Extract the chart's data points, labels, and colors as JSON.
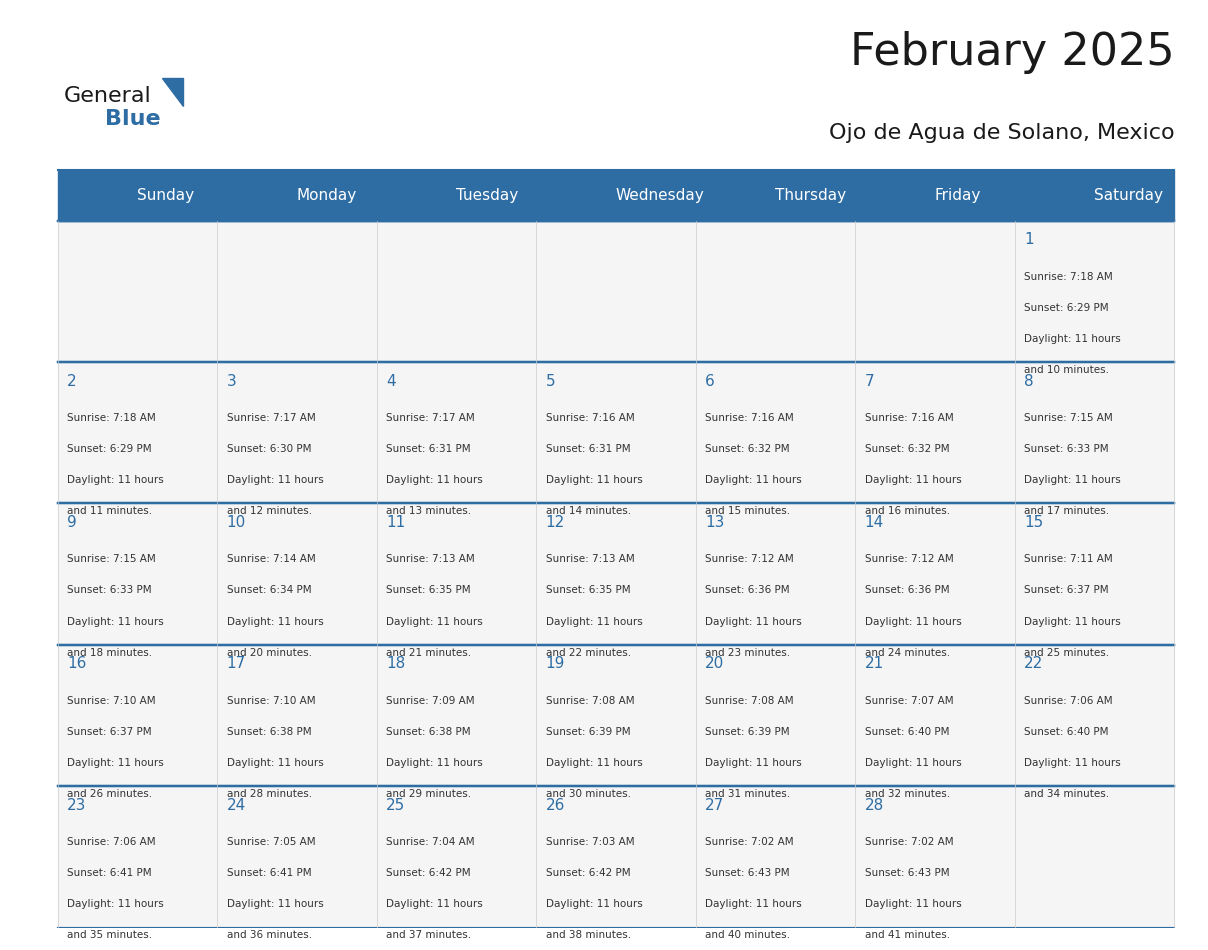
{
  "title": "February 2025",
  "subtitle": "Ojo de Agua de Solano, Mexico",
  "header_bg_color": "#2E6DA4",
  "header_text_color": "#FFFFFF",
  "cell_bg_color": "#F2F2F2",
  "cell_alt_bg_color": "#FFFFFF",
  "day_headers": [
    "Sunday",
    "Monday",
    "Tuesday",
    "Wednesday",
    "Thursday",
    "Friday",
    "Saturday"
  ],
  "title_color": "#1a1a1a",
  "subtitle_color": "#1a1a1a",
  "day_number_color": "#2E6DA4",
  "cell_text_color": "#333333",
  "grid_line_color": "#2E6DA4",
  "calendar_data": [
    [
      null,
      null,
      null,
      null,
      null,
      null,
      {
        "day": 1,
        "sunrise": "7:18 AM",
        "sunset": "6:29 PM",
        "daylight": "11 hours and 10 minutes."
      }
    ],
    [
      {
        "day": 2,
        "sunrise": "7:18 AM",
        "sunset": "6:29 PM",
        "daylight": "11 hours and 11 minutes."
      },
      {
        "day": 3,
        "sunrise": "7:17 AM",
        "sunset": "6:30 PM",
        "daylight": "11 hours and 12 minutes."
      },
      {
        "day": 4,
        "sunrise": "7:17 AM",
        "sunset": "6:31 PM",
        "daylight": "11 hours and 13 minutes."
      },
      {
        "day": 5,
        "sunrise": "7:16 AM",
        "sunset": "6:31 PM",
        "daylight": "11 hours and 14 minutes."
      },
      {
        "day": 6,
        "sunrise": "7:16 AM",
        "sunset": "6:32 PM",
        "daylight": "11 hours and 15 minutes."
      },
      {
        "day": 7,
        "sunrise": "7:16 AM",
        "sunset": "6:32 PM",
        "daylight": "11 hours and 16 minutes."
      },
      {
        "day": 8,
        "sunrise": "7:15 AM",
        "sunset": "6:33 PM",
        "daylight": "11 hours and 17 minutes."
      }
    ],
    [
      {
        "day": 9,
        "sunrise": "7:15 AM",
        "sunset": "6:33 PM",
        "daylight": "11 hours and 18 minutes."
      },
      {
        "day": 10,
        "sunrise": "7:14 AM",
        "sunset": "6:34 PM",
        "daylight": "11 hours and 20 minutes."
      },
      {
        "day": 11,
        "sunrise": "7:13 AM",
        "sunset": "6:35 PM",
        "daylight": "11 hours and 21 minutes."
      },
      {
        "day": 12,
        "sunrise": "7:13 AM",
        "sunset": "6:35 PM",
        "daylight": "11 hours and 22 minutes."
      },
      {
        "day": 13,
        "sunrise": "7:12 AM",
        "sunset": "6:36 PM",
        "daylight": "11 hours and 23 minutes."
      },
      {
        "day": 14,
        "sunrise": "7:12 AM",
        "sunset": "6:36 PM",
        "daylight": "11 hours and 24 minutes."
      },
      {
        "day": 15,
        "sunrise": "7:11 AM",
        "sunset": "6:37 PM",
        "daylight": "11 hours and 25 minutes."
      }
    ],
    [
      {
        "day": 16,
        "sunrise": "7:10 AM",
        "sunset": "6:37 PM",
        "daylight": "11 hours and 26 minutes."
      },
      {
        "day": 17,
        "sunrise": "7:10 AM",
        "sunset": "6:38 PM",
        "daylight": "11 hours and 28 minutes."
      },
      {
        "day": 18,
        "sunrise": "7:09 AM",
        "sunset": "6:38 PM",
        "daylight": "11 hours and 29 minutes."
      },
      {
        "day": 19,
        "sunrise": "7:08 AM",
        "sunset": "6:39 PM",
        "daylight": "11 hours and 30 minutes."
      },
      {
        "day": 20,
        "sunrise": "7:08 AM",
        "sunset": "6:39 PM",
        "daylight": "11 hours and 31 minutes."
      },
      {
        "day": 21,
        "sunrise": "7:07 AM",
        "sunset": "6:40 PM",
        "daylight": "11 hours and 32 minutes."
      },
      {
        "day": 22,
        "sunrise": "7:06 AM",
        "sunset": "6:40 PM",
        "daylight": "11 hours and 34 minutes."
      }
    ],
    [
      {
        "day": 23,
        "sunrise": "7:06 AM",
        "sunset": "6:41 PM",
        "daylight": "11 hours and 35 minutes."
      },
      {
        "day": 24,
        "sunrise": "7:05 AM",
        "sunset": "6:41 PM",
        "daylight": "11 hours and 36 minutes."
      },
      {
        "day": 25,
        "sunrise": "7:04 AM",
        "sunset": "6:42 PM",
        "daylight": "11 hours and 37 minutes."
      },
      {
        "day": 26,
        "sunrise": "7:03 AM",
        "sunset": "6:42 PM",
        "daylight": "11 hours and 38 minutes."
      },
      {
        "day": 27,
        "sunrise": "7:02 AM",
        "sunset": "6:43 PM",
        "daylight": "11 hours and 40 minutes."
      },
      {
        "day": 28,
        "sunrise": "7:02 AM",
        "sunset": "6:43 PM",
        "daylight": "11 hours and 41 minutes."
      },
      null
    ]
  ],
  "logo_text_general": "General",
  "logo_text_blue": "Blue",
  "logo_triangle_color": "#2E6DA4"
}
